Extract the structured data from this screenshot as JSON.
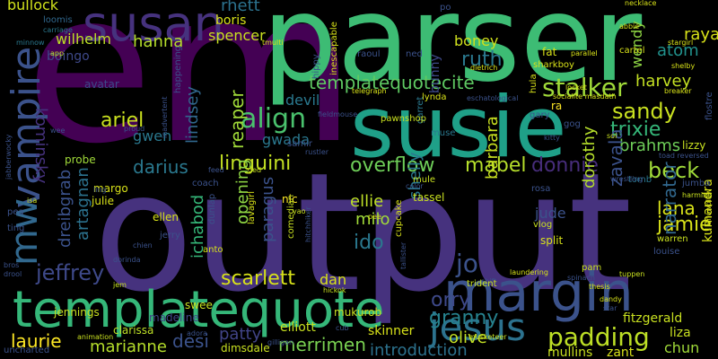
{
  "words": {
    "output": {
      "text": "output",
      "color": "#46327e"
    },
    "em": {
      "text": "em",
      "color": "#440154"
    },
    "parser": {
      "text": "parser",
      "color": "#3dbc74"
    },
    "susie": {
      "text": "susie",
      "color": "#1fa088"
    },
    "susan": {
      "text": "susan",
      "color": "#46327e"
    },
    "templatequote": {
      "text": "templatequote",
      "color": "#35b779"
    },
    "margin": {
      "text": "margin",
      "color": "#3b528b"
    },
    "vampire": {
      "text": "vampire",
      "color": "#3b528b"
    },
    "mw": {
      "text": "mw",
      "color": "#31688e"
    },
    "jesus": {
      "text": "jesus",
      "color": "#2c728e"
    },
    "align": {
      "text": "align",
      "color": "#4ac16d"
    },
    "templatequotecite": {
      "text": "templatequotecite",
      "color": "#5ec962"
    },
    "stalker": {
      "text": "stalker",
      "color": "#a0da39"
    },
    "sandy": {
      "text": "sandy",
      "color": "#c8e020"
    },
    "trixie": {
      "text": "trixie",
      "color": "#35b779"
    },
    "overflow": {
      "text": "overflow",
      "color": "#6ece58"
    },
    "mabel": {
      "text": "mabel",
      "color": "#b5de2b"
    },
    "padding": {
      "text": "padding",
      "color": "#bddf26"
    },
    "linguini": {
      "text": "linguini",
      "color": "#c2df23"
    },
    "scarlett": {
      "text": "scarlett",
      "color": "#d8e219"
    },
    "jeffrey": {
      "text": "jeffrey",
      "color": "#3e4989"
    },
    "darius": {
      "text": "darius",
      "color": "#2a788e"
    },
    "ariel": {
      "text": "ariel",
      "color": "#cae11f"
    },
    "hanna": {
      "text": "hanna",
      "color": "#b5de2b"
    },
    "spencer": {
      "text": "spencer",
      "color": "#c8e020"
    },
    "boris": {
      "text": "boris",
      "color": "#d8e219"
    },
    "rhett": {
      "text": "rhett",
      "color": "#2c728e"
    },
    "wilhelm": {
      "text": "wilhelm",
      "color": "#bddf26"
    },
    "bullock": {
      "text": "bullock",
      "color": "#d0e11c"
    },
    "kominsky": {
      "text": "kominsky",
      "color": "#46327e"
    },
    "boingo": {
      "text": "boingo",
      "color": "#3e4989"
    },
    "ruth": {
      "text": "ruth",
      "color": "#2a788e"
    },
    "boney": {
      "text": "boney",
      "color": "#d0e11c"
    },
    "harvey": {
      "text": "harvey",
      "color": "#c2df23"
    },
    "atom": {
      "text": "atom",
      "color": "#21918c"
    },
    "raya": {
      "text": "raya",
      "color": "#d8e219"
    },
    "wendy": {
      "text": "wendy",
      "color": "#8fd744"
    },
    "devil": {
      "text": "devil",
      "color": "#2a788e"
    },
    "reaper": {
      "text": "reaper",
      "color": "#a0da39"
    },
    "lindsey": {
      "text": "lindsey",
      "color": "#31688e"
    },
    "gwada": {
      "text": "gwada",
      "color": "#2a788e"
    },
    "gwen": {
      "text": "gwen",
      "color": "#2a788e"
    },
    "brahms": {
      "text": "brahms",
      "color": "#6ece58"
    },
    "donnie": {
      "text": "donnie",
      "color": "#472d7b"
    },
    "beck": {
      "text": "beck",
      "color": "#a0da39"
    },
    "lana": {
      "text": "lana",
      "color": "#d8e219"
    },
    "jamie": {
      "text": "jamie",
      "color": "#d8e219"
    },
    "zavala": {
      "text": "zavala",
      "color": "#3b528b"
    },
    "narrator": {
      "text": "narrator",
      "color": "#31688e"
    },
    "kumandra": {
      "text": "kumandra",
      "color": "#d8e219"
    },
    "dorothy": {
      "text": "dorothy",
      "color": "#b5de2b"
    },
    "jude": {
      "text": "jude",
      "color": "#3b528b"
    },
    "barbara": {
      "text": "barbara",
      "color": "#c8e020"
    },
    "shelly": {
      "text": "shelly",
      "color": "#2a788e"
    },
    "ellie": {
      "text": "ellie",
      "color": "#bddf26"
    },
    "milo": {
      "text": "milo",
      "color": "#a0da39"
    },
    "ido": {
      "text": "ido",
      "color": "#2a788e"
    },
    "jo": {
      "text": "jo",
      "color": "#3b528b"
    },
    "orry": {
      "text": "orry",
      "color": "#3e4989"
    },
    "granny": {
      "text": "granny",
      "color": "#26828e"
    },
    "olive": {
      "text": "olive",
      "color": "#c2df23"
    },
    "introduction": {
      "text": "introduction",
      "color": "#2c728e"
    },
    "merrimen": {
      "text": "merrimen",
      "color": "#7ad151"
    },
    "desi": {
      "text": "desi",
      "color": "#3b528b"
    },
    "patty": {
      "text": "patty",
      "color": "#414487"
    },
    "marianne": {
      "text": "marianne",
      "color": "#b5de2b"
    },
    "laurie": {
      "text": "laurie",
      "color": "#fde725"
    },
    "artagnan": {
      "text": "artagnan",
      "color": "#2c728e"
    },
    "dreibgrab": {
      "text": "dreibgrab",
      "color": "#3b528b"
    },
    "ichabod": {
      "text": "ichabod",
      "color": "#35b779"
    },
    "opening": {
      "text": "opening",
      "color": "#8fd744"
    },
    "paragus": {
      "text": "paragus",
      "color": "#3b528b"
    },
    "dan": {
      "text": "dan",
      "color": "#d8e219"
    },
    "elliott": {
      "text": "elliott",
      "color": "#c8e020"
    },
    "mukurob": {
      "text": "mukurob",
      "color": "#c8e020"
    },
    "skinner": {
      "text": "skinner",
      "color": "#d8e219"
    },
    "mullins": {
      "text": "mullins",
      "color": "#c8e020"
    },
    "zant": {
      "text": "zant",
      "color": "#d8e219"
    },
    "chun": {
      "text": "chun",
      "color": "#a0da39"
    },
    "liza": {
      "text": "liza",
      "color": "#c8e020"
    },
    "fitzgerald": {
      "text": "fitzgerald",
      "color": "#c8e020"
    },
    "swee": {
      "text": "swee",
      "color": "#c8e020"
    },
    "madeline": {
      "text": "madeline",
      "color": "#414487"
    },
    "jennings": {
      "text": "jennings",
      "color": "#c8e020"
    },
    "clarissa": {
      "text": "clarissa",
      "color": "#bddf26"
    },
    "dimsdale": {
      "text": "dimsdale",
      "color": "#c8e020"
    },
    "margo": {
      "text": "margo",
      "color": "#d8e219"
    },
    "julie": {
      "text": "julie",
      "color": "#d8e219"
    },
    "probe": {
      "text": "probe",
      "color": "#a0da39"
    },
    "ellen": {
      "text": "ellen",
      "color": "#d8e219"
    },
    "avatar": {
      "text": "avatar",
      "color": "#3e4989"
    },
    "loomis": {
      "text": "loomis",
      "color": "#31688e"
    },
    "carriage": {
      "text": "carriage",
      "color": "#2a788e"
    },
    "minnow": {
      "text": "minnow",
      "color": "#2a788e"
    },
    "app": {
      "text": "app",
      "color": "#bddf26"
    },
    "ned": {
      "text": "ned",
      "color": "#3b528b"
    },
    "raoul": {
      "text": "raoul",
      "color": "#3b528b"
    },
    "fat": {
      "text": "fat",
      "color": "#d8e219"
    },
    "abbie": {
      "text": "abbie",
      "color": "#d8e219"
    },
    "necklace": {
      "text": "necklace",
      "color": "#d8e219"
    },
    "stargirl": {
      "text": "stargirl",
      "color": "#d8e219"
    },
    "cartel": {
      "text": "cartel",
      "color": "#d8e219"
    },
    "shelby": {
      "text": "shelby",
      "color": "#d8e219"
    },
    "parallel": {
      "text": "parallel",
      "color": "#d8e219"
    },
    "sharkboy": {
      "text": "sharkboy",
      "color": "#d8e219"
    },
    "hula": {
      "text": "hula",
      "color": "#d8e219"
    },
    "lynda": {
      "text": "lynda",
      "color": "#d8e219"
    },
    "hippy": {
      "text": "hippy",
      "color": "#3b528b"
    },
    "bunny": {
      "text": "bunny",
      "color": "#3e4989"
    },
    "po": {
      "text": "po",
      "color": "#3b528b"
    },
    "ra": {
      "text": "ra",
      "color": "#fde725"
    },
    "gary": {
      "text": "gary",
      "color": "#3b528b"
    },
    "gog": {
      "text": "gog",
      "color": "#3b528b"
    },
    "muse": {
      "text": "muse",
      "color": "#2a788e"
    },
    "garret": {
      "text": "garret",
      "color": "#2a788e"
    },
    "samir": {
      "text": "samir",
      "color": "#3b528b"
    },
    "rustler": {
      "text": "rustler",
      "color": "#3b528b"
    },
    "lizzy": {
      "text": "lizzy",
      "color": "#c8e020"
    },
    "flostre": {
      "text": "flostre",
      "color": "#3b528b"
    },
    "reversed": {
      "text": "toad reversed",
      "color": "#3b528b"
    },
    "sol": {
      "text": "sol",
      "color": "#c8e020"
    },
    "kitty": {
      "text": "kitty",
      "color": "#3b528b"
    },
    "mule": {
      "text": "mule",
      "color": "#c8e020"
    },
    "nic": {
      "text": "nic",
      "color": "#fde725"
    },
    "tassel": {
      "text": "tassel",
      "color": "#c8e020"
    },
    "rosa": {
      "text": "rosa",
      "color": "#3b528b"
    },
    "color": {
      "text": "color",
      "color": "#3b528b"
    },
    "split": {
      "text": "split",
      "color": "#d8e219"
    },
    "vlog": {
      "text": "vlog",
      "color": "#c8e020"
    },
    "tomb": {
      "text": "tomb",
      "color": "#2a788e"
    },
    "wrestling": {
      "text": "wrestling",
      "color": "#3b528b"
    },
    "jumba": {
      "text": "jumba",
      "color": "#3b528b"
    },
    "harming": {
      "text": "harming",
      "color": "#c8e020"
    },
    "warren": {
      "text": "warren",
      "color": "#c8e020"
    },
    "louise": {
      "text": "louise",
      "color": "#3b528b"
    },
    "pam": {
      "text": "pam",
      "color": "#c8e020"
    },
    "tuppen": {
      "text": "tuppen",
      "color": "#c8e020"
    },
    "spinach": {
      "text": "spinach",
      "color": "#3b528b"
    },
    "dandy": {
      "text": "dandy",
      "color": "#d8e219"
    },
    "star": {
      "text": "star",
      "color": "#3b528b"
    },
    "laundering": {
      "text": "laundering",
      "color": "#d8e219"
    },
    "shift": {
      "text": "shift",
      "color": "#3b528b"
    },
    "trident": {
      "text": "trident",
      "color": "#c8e020"
    },
    "tallister": {
      "text": "tallister",
      "color": "#3b528b"
    },
    "cupcake": {
      "text": "cupcake",
      "color": "#d8e219"
    },
    "pee": {
      "text": "pee",
      "color": "#d8e219"
    },
    "hitchhiker": {
      "text": "hitchhiker",
      "color": "#3b528b"
    },
    "comedian": {
      "text": "comedian",
      "color": "#c8e020"
    },
    "dunlap": {
      "text": "dunlap",
      "color": "#3b528b"
    },
    "anto": {
      "text": "anto",
      "color": "#d8e219"
    },
    "lavagirl": {
      "text": "lavagirl",
      "color": "#d8e219"
    },
    "yao": {
      "text": "yao",
      "color": "#c8e020"
    },
    "coach": {
      "text": "coach",
      "color": "#3b528b"
    },
    "ting": {
      "text": "ting",
      "color": "#3b528b"
    },
    "pea": {
      "text": "pea",
      "color": "#3b528b"
    },
    "isa": {
      "text": "isa",
      "color": "#c8e020"
    },
    "bros": {
      "text": "bros",
      "color": "#3b528b"
    },
    "drool": {
      "text": "drool",
      "color": "#3b528b"
    },
    "jabberwocky": {
      "text": "jabberwocky",
      "color": "#3b528b"
    },
    "chien": {
      "text": "chien",
      "color": "#3b528b"
    },
    "dorinda": {
      "text": "dorinda",
      "color": "#3b528b"
    },
    "jem": {
      "text": "jem",
      "color": "#c8e020"
    },
    "hickok": {
      "text": "hickok",
      "color": "#c8e020"
    },
    "cub": {
      "text": "cub",
      "color": "#3b528b"
    },
    "adora": {
      "text": "adora",
      "color": "#3b528b"
    },
    "animation": {
      "text": "animation",
      "color": "#c8e020"
    },
    "uncharted": {
      "text": "uncharted",
      "color": "#3b528b"
    },
    "telegraph": {
      "text": "telegraph",
      "color": "#d8e219"
    },
    "dietrich": {
      "text": "dietrich",
      "color": "#d8e219"
    },
    "escapable": {
      "text": "inescapable",
      "color": "#d8e219"
    },
    "pawnshop": {
      "text": "pawnshop",
      "color": "#c8e020"
    },
    "happening": {
      "text": "happening",
      "color": "#3b528b"
    },
    "tmulti": {
      "text": "tmulti",
      "color": "#d8e219"
    },
    "proud": {
      "text": "proud",
      "color": "#3b528b"
    },
    "inadvertent": {
      "text": "inadvertent",
      "color": "#3b528b"
    },
    "eschatological": {
      "text": "eschatological",
      "color": "#3b528b"
    },
    "masdath": {
      "text": "socialite masdath",
      "color": "#d8e219"
    },
    "locket": {
      "text": "locket",
      "color": "#d8e219"
    },
    "breaker": {
      "text": "breaker",
      "color": "#d8e219"
    },
    "snowplow": {
      "text": "snowplow",
      "color": "#d8e219"
    },
    "musketeer": {
      "text": "musketeer",
      "color": "#c8e020"
    },
    "fieldmouse": {
      "text": "fieldmouse",
      "color": "#3b528b"
    },
    "gilligan": {
      "text": "gilligan",
      "color": "#3b528b"
    },
    "wee": {
      "text": "wee",
      "color": "#3b528b"
    },
    "feed": {
      "text": "feed",
      "color": "#3b528b"
    },
    "ling": {
      "text": "ling",
      "color": "#3b528b"
    },
    "ged": {
      "text": "ged",
      "color": "#c8e020"
    },
    "jerry": {
      "text": "jerry",
      "color": "#3b528b"
    },
    "thesis": {
      "text": "thesis",
      "color": "#d8e219"
    }
  }
}
